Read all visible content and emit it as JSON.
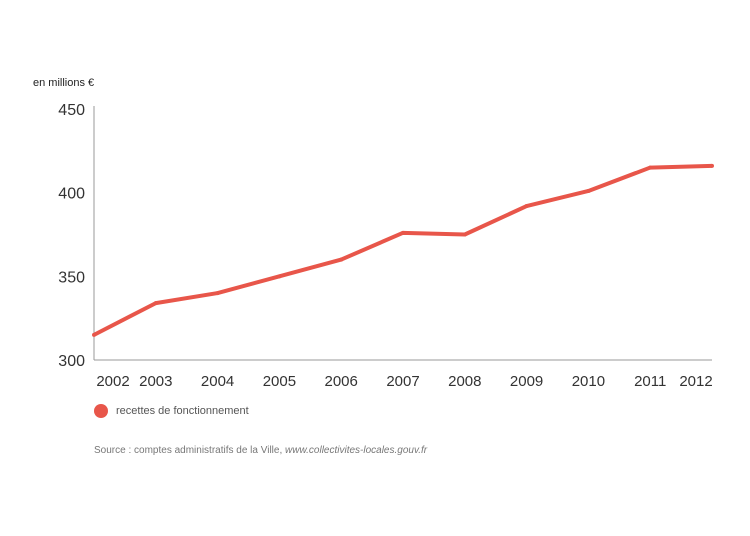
{
  "chart_data": {
    "type": "line",
    "unit_label": "en millions €",
    "x": [
      "2002",
      "2003",
      "2004",
      "2005",
      "2006",
      "2007",
      "2008",
      "2009",
      "2010",
      "2011",
      "2012"
    ],
    "series": [
      {
        "name": "recettes de fonctionnement",
        "color": "#e8564a",
        "values": [
          315,
          334,
          340,
          350,
          360,
          376,
          375,
          392,
          401,
          415,
          416
        ]
      }
    ],
    "yticks": [
      "300",
      "350",
      "400",
      "450"
    ],
    "ylim": [
      300,
      450
    ],
    "grid": false,
    "legend_position": "bottom-left"
  },
  "legend": {
    "label": "recettes de fonctionnement",
    "color": "#e8564a"
  },
  "source": {
    "prefix": "Source : comptes administratifs de la Ville, ",
    "site": "www.collectivites-locales.gouv.fr"
  }
}
